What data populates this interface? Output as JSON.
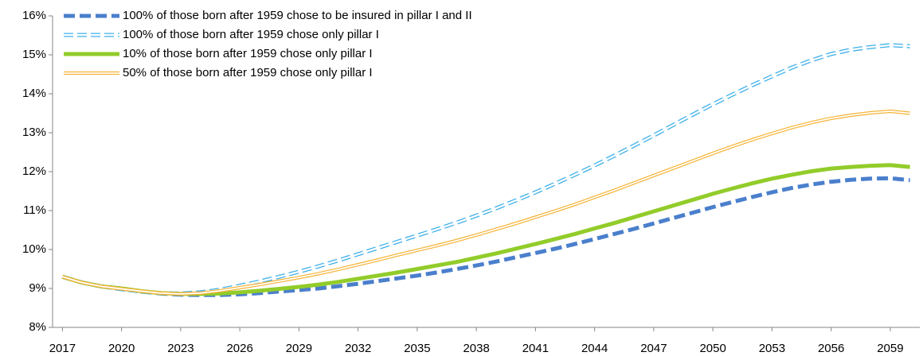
{
  "chart_data": {
    "type": "line",
    "x": [
      2017,
      2018,
      2019,
      2020,
      2021,
      2022,
      2023,
      2024,
      2025,
      2026,
      2027,
      2028,
      2029,
      2030,
      2031,
      2032,
      2033,
      2034,
      2035,
      2036,
      2037,
      2038,
      2039,
      2040,
      2041,
      2042,
      2043,
      2044,
      2045,
      2046,
      2047,
      2048,
      2049,
      2050,
      2051,
      2052,
      2053,
      2054,
      2055,
      2056,
      2057,
      2058,
      2059,
      2060
    ],
    "xlim": [
      2016.5,
      2060.5
    ],
    "xticks": [
      2017,
      2020,
      2023,
      2026,
      2029,
      2032,
      2035,
      2038,
      2041,
      2044,
      2047,
      2050,
      2053,
      2056,
      2059
    ],
    "ylim": [
      8,
      16
    ],
    "yticks": [
      {
        "value": 8,
        "label": "8%"
      },
      {
        "value": 9,
        "label": "9%"
      },
      {
        "value": 10,
        "label": "10%"
      },
      {
        "value": 11,
        "label": "11%"
      },
      {
        "value": 12,
        "label": "12%"
      },
      {
        "value": 13,
        "label": "13%"
      },
      {
        "value": 14,
        "label": "14%"
      },
      {
        "value": 15,
        "label": "15%"
      },
      {
        "value": 16,
        "label": "16%"
      }
    ],
    "legend": "top-left",
    "series": [
      {
        "name": "100% of those born after 1959 chose to be insured in pillar I and II",
        "color": "#4a7fcc",
        "dashed": true,
        "double": false,
        "values": [
          9.3,
          9.15,
          9.05,
          9.0,
          8.92,
          8.87,
          8.84,
          8.83,
          8.83,
          8.85,
          8.88,
          8.92,
          8.96,
          9.0,
          9.06,
          9.12,
          9.19,
          9.26,
          9.33,
          9.41,
          9.5,
          9.59,
          9.69,
          9.8,
          9.91,
          10.02,
          10.14,
          10.27,
          10.4,
          10.53,
          10.67,
          10.81,
          10.95,
          11.09,
          11.22,
          11.35,
          11.47,
          11.58,
          11.67,
          11.74,
          11.79,
          11.82,
          11.83,
          11.78
        ]
      },
      {
        "name": "100% of those born after 1959 chose only pillar I",
        "color": "#3fb0e8",
        "dashed": true,
        "double": true,
        "values": [
          9.3,
          9.15,
          9.05,
          8.98,
          8.92,
          8.88,
          8.87,
          8.9,
          8.97,
          9.07,
          9.18,
          9.3,
          9.43,
          9.57,
          9.72,
          9.88,
          10.04,
          10.2,
          10.36,
          10.52,
          10.69,
          10.87,
          11.06,
          11.26,
          11.47,
          11.69,
          11.92,
          12.16,
          12.41,
          12.67,
          12.93,
          13.2,
          13.47,
          13.73,
          13.98,
          14.22,
          14.45,
          14.67,
          14.86,
          15.02,
          15.13,
          15.2,
          15.25,
          15.22
        ]
      },
      {
        "name": "10% of those born after 1959 chose only pillar I",
        "color": "#92cc2a",
        "dashed": false,
        "double": false,
        "values": [
          9.3,
          9.15,
          9.05,
          9.0,
          8.93,
          8.88,
          8.86,
          8.86,
          8.87,
          8.9,
          8.94,
          8.99,
          9.04,
          9.1,
          9.17,
          9.25,
          9.33,
          9.41,
          9.5,
          9.59,
          9.68,
          9.79,
          9.9,
          10.02,
          10.14,
          10.27,
          10.4,
          10.54,
          10.68,
          10.83,
          10.98,
          11.13,
          11.28,
          11.43,
          11.57,
          11.7,
          11.82,
          11.92,
          12.01,
          12.08,
          12.12,
          12.15,
          12.17,
          12.12
        ]
      },
      {
        "name": "50% of those born after 1959 chose only pillar I",
        "color": "#f5b335",
        "dashed": false,
        "double": true,
        "values": [
          9.3,
          9.15,
          9.05,
          8.99,
          8.93,
          8.88,
          8.86,
          8.88,
          8.94,
          9.02,
          9.1,
          9.19,
          9.28,
          9.38,
          9.49,
          9.61,
          9.73,
          9.86,
          9.98,
          10.1,
          10.23,
          10.37,
          10.52,
          10.67,
          10.83,
          10.99,
          11.16,
          11.34,
          11.52,
          11.71,
          11.9,
          12.09,
          12.28,
          12.47,
          12.65,
          12.82,
          12.98,
          13.13,
          13.26,
          13.37,
          13.45,
          13.51,
          13.55,
          13.5
        ]
      }
    ]
  }
}
